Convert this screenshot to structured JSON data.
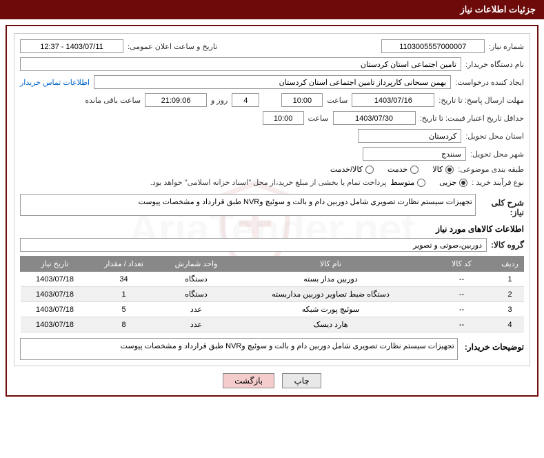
{
  "header": {
    "title": "جزئیات اطلاعات نیاز"
  },
  "watermark": {
    "text": "AriaTender.net"
  },
  "form": {
    "need_number_label": "شماره نیاز:",
    "need_number": "1103005557000007",
    "announce_label": "تاریخ و ساعت اعلان عمومی:",
    "announce_value": "1403/07/11 - 12:37",
    "buyer_org_label": "نام دستگاه خریدار:",
    "buyer_org": "تامین اجتماعی استان کردستان",
    "requester_label": "ایجاد کننده درخواست:",
    "requester": "بهمن سبحانی کارپرداز تامین اجتماعی استان کردستان",
    "contact_link": "اطلاعات تماس خریدار",
    "deadline_label": "مهلت ارسال پاسخ: تا تاریخ:",
    "deadline_date": "1403/07/16",
    "time_label": "ساعت",
    "deadline_time": "10:00",
    "days_remaining": "4",
    "days_label": "روز و",
    "hours_remaining": "21:09:06",
    "remaining_label": "ساعت باقی مانده",
    "validity_label": "حداقل تاریخ اعتبار قیمت: تا تاریخ:",
    "validity_date": "1403/07/30",
    "validity_time": "10:00",
    "province_label": "استان محل تحویل:",
    "province": "کردستان",
    "city_label": "شهر محل تحویل:",
    "city": "سنندج",
    "category_label": "طبقه بندی موضوعی:",
    "category_options": {
      "goods": "کالا",
      "service": "خدمت",
      "both": "کالا/خدمت"
    },
    "purchase_type_label": "نوع فرآیند خرید :",
    "purchase_options": {
      "partial": "جزیی",
      "medium": "متوسط"
    },
    "purchase_note": "پرداخت تمام یا بخشی از مبلغ خرید،از محل \"اسناد خزانه اسلامی\" خواهد بود.",
    "need_desc_label": "شرح کلی نیاز:",
    "need_desc": "تجهیزات سیستم نظارت تصویری شامل دوربین دام و بالت و سوئیچ وNVR طبق قرارداد و مشخصات پیوست",
    "goods_info_title": "اطلاعات کالاهای مورد نیاز",
    "goods_group_label": "گروه کالا:",
    "goods_group": "دوربین،صوتی و تصویر",
    "buyer_desc_label": "توضیحات خریدار:",
    "buyer_desc": "تجهیزات سیستم نظارت تصویری شامل دوربین دام و بالت و سوئیچ وNVR طبق قرارداد و مشخصات پیوست"
  },
  "table": {
    "headers": {
      "row": "ردیف",
      "code": "کد کالا",
      "name": "نام کالا",
      "unit": "واحد شمارش",
      "qty": "تعداد / مقدار",
      "date": "تاریخ نیاز"
    },
    "rows": [
      {
        "n": "1",
        "code": "--",
        "name": "دوربین مدار بسته",
        "unit": "دستگاه",
        "qty": "34",
        "date": "1403/07/18"
      },
      {
        "n": "2",
        "code": "--",
        "name": "دستگاه ضبط تصاویر دوربین مداربسته",
        "unit": "دستگاه",
        "qty": "1",
        "date": "1403/07/18"
      },
      {
        "n": "3",
        "code": "--",
        "name": "سوئیچ پورت شبکه",
        "unit": "عدد",
        "qty": "5",
        "date": "1403/07/18"
      },
      {
        "n": "4",
        "code": "--",
        "name": "هارد دیسک",
        "unit": "عدد",
        "qty": "8",
        "date": "1403/07/18"
      }
    ]
  },
  "buttons": {
    "print": "چاپ",
    "back": "بازگشت"
  }
}
